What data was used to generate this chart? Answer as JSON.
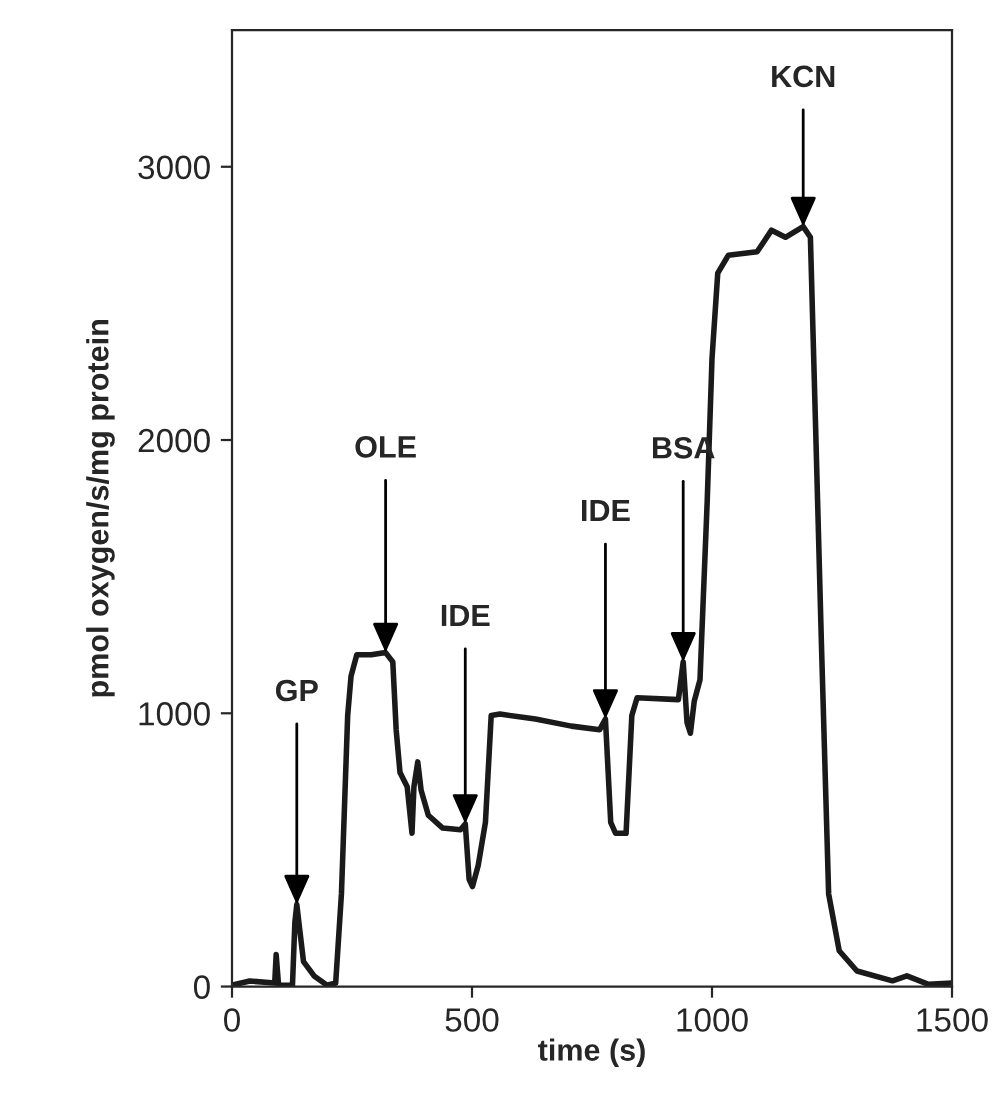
{
  "chart_data": {
    "type": "line",
    "xlabel": "time (s)",
    "ylabel": "pmol oxygen/s/mg protein",
    "xlim": [
      0,
      1500
    ],
    "xticks": [
      0,
      500,
      1000,
      1500
    ],
    "ylim": [
      0,
      3500
    ],
    "yticks": [
      0,
      1000,
      2000,
      3000
    ],
    "grid": false,
    "marker": "none",
    "line_style": "solid",
    "series": [
      {
        "color": "#1a1a1a",
        "x": [
          0,
          37,
          89,
          92,
          97,
          126,
          131,
          135,
          141,
          149,
          171,
          198,
          216,
          228,
          241,
          248,
          260,
          290,
          320,
          335,
          342,
          350,
          365,
          375,
          379,
          387,
          394,
          409,
          439,
          476,
          486,
          494,
          501,
          513,
          528,
          540,
          558,
          632,
          707,
          766,
          778,
          789,
          799,
          821,
          833,
          844,
          930,
          940,
          948,
          955,
          963,
          975,
          990,
          1000,
          1012,
          1034,
          1094,
          1124,
          1153,
          1190,
          1205,
          1216,
          1228,
          1243,
          1265,
          1302,
          1376,
          1406,
          1451,
          1500
        ],
        "values": [
          5,
          20,
          13,
          117,
          5,
          5,
          235,
          300,
          209,
          91,
          39,
          5,
          13,
          339,
          992,
          1136,
          1214,
          1214,
          1222,
          1188,
          940,
          783,
          731,
          561,
          731,
          822,
          718,
          627,
          580,
          574,
          595,
          392,
          366,
          444,
          601,
          992,
          997,
          979,
          953,
          940,
          979,
          601,
          561,
          561,
          992,
          1057,
          1050,
          1188,
          966,
          927,
          1044,
          1123,
          1775,
          2298,
          2611,
          2676,
          2689,
          2768,
          2742,
          2781,
          2742,
          2037,
          1253,
          339,
          131,
          57,
          21,
          39,
          8,
          13
        ]
      }
    ],
    "annotations": [
      {
        "text": "GP",
        "x": 135,
        "y": 300
      },
      {
        "text": "OLE",
        "x": 320,
        "y": 1222
      },
      {
        "text": "IDE",
        "x": 486,
        "y": 595
      },
      {
        "text": "IDE",
        "x": 778,
        "y": 979
      },
      {
        "text": "BSA",
        "x": 940,
        "y": 1188
      },
      {
        "text": "KCN",
        "x": 1190,
        "y": 2781
      }
    ]
  }
}
